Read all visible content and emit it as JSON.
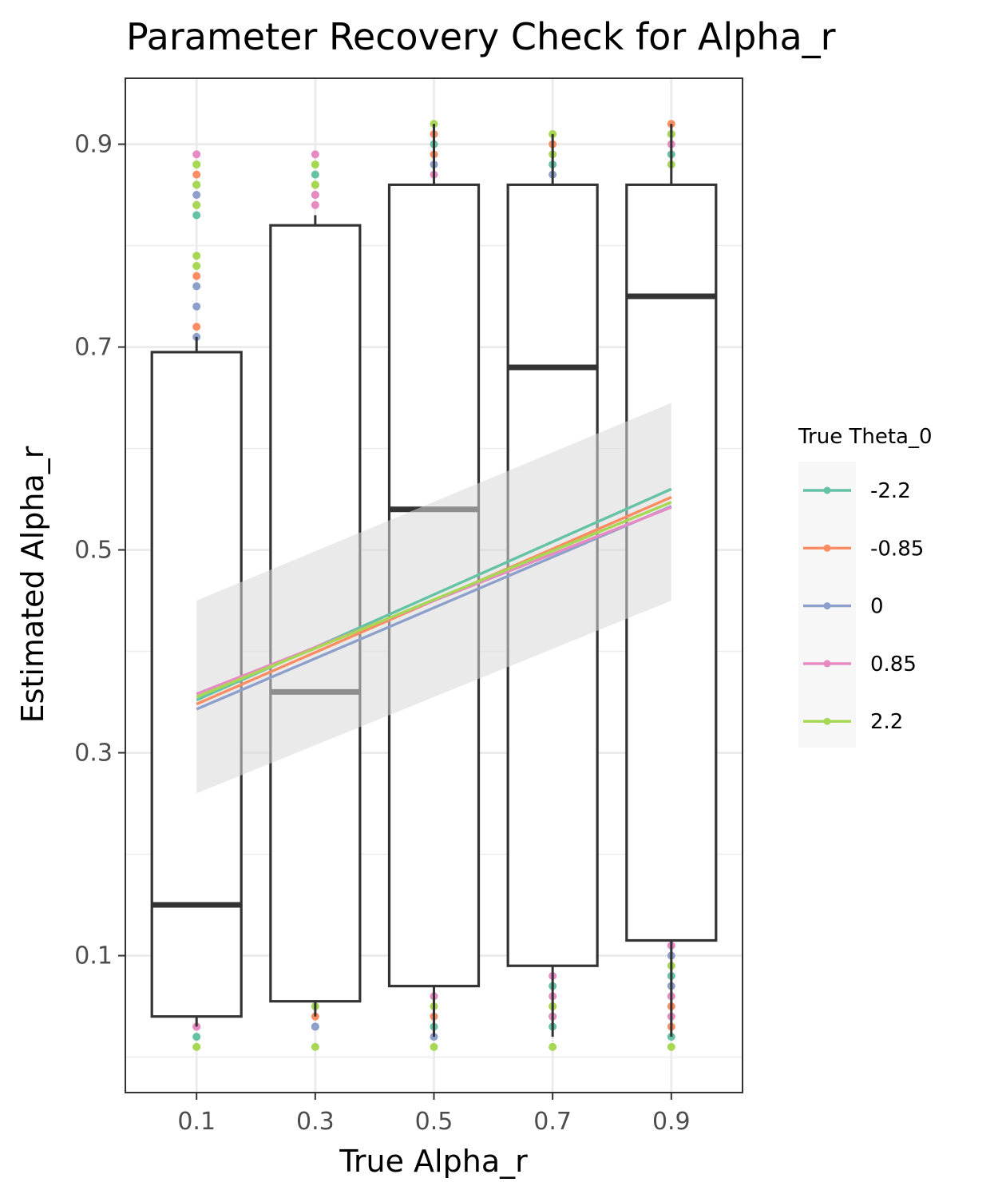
{
  "chart_data": {
    "type": "box",
    "title": "Parameter Recovery Check for Alpha_r",
    "xlabel": "True Alpha_r",
    "ylabel": "Estimated Alpha_r",
    "categories": [
      "0.1",
      "0.3",
      "0.5",
      "0.7",
      "0.9"
    ],
    "x_values": [
      0.1,
      0.3,
      0.5,
      0.7,
      0.9
    ],
    "xlim": [
      -0.02,
      1.02
    ],
    "ylim": [
      -0.035,
      0.965
    ],
    "y_ticks": [
      0.1,
      0.3,
      0.5,
      0.7,
      0.9
    ],
    "y_tick_labels": [
      "0.1",
      "0.3",
      "0.5",
      "0.7",
      "0.9"
    ],
    "grid": true,
    "legend_title": "True Theta_0",
    "legend_position": "right",
    "boxes": [
      {
        "x": 0.1,
        "q1": 0.04,
        "median": 0.15,
        "q3": 0.695,
        "whisker_low": 0.03,
        "whisker_high": 0.71
      },
      {
        "x": 0.3,
        "q1": 0.055,
        "median": 0.36,
        "q3": 0.82,
        "whisker_low": 0.04,
        "whisker_high": 0.83
      },
      {
        "x": 0.5,
        "q1": 0.07,
        "median": 0.54,
        "q3": 0.86,
        "whisker_low": 0.02,
        "whisker_high": 0.92
      },
      {
        "x": 0.7,
        "q1": 0.09,
        "median": 0.68,
        "q3": 0.86,
        "whisker_low": 0.02,
        "whisker_high": 0.91
      },
      {
        "x": 0.9,
        "q1": 0.115,
        "median": 0.75,
        "q3": 0.86,
        "whisker_low": 0.02,
        "whisker_high": 0.92
      }
    ],
    "series": [
      {
        "name": "-2.2",
        "color": "#66c2a5",
        "line": [
          [
            0.1,
            0.352
          ],
          [
            0.9,
            0.56
          ]
        ],
        "points": [
          [
            0.1,
            0.88
          ],
          [
            0.1,
            0.86
          ],
          [
            0.1,
            0.83
          ],
          [
            0.1,
            0.02
          ],
          [
            0.3,
            0.87
          ],
          [
            0.3,
            0.03
          ],
          [
            0.5,
            0.9
          ],
          [
            0.5,
            0.03
          ],
          [
            0.7,
            0.88
          ],
          [
            0.7,
            0.07
          ],
          [
            0.7,
            0.03
          ],
          [
            0.9,
            0.89
          ],
          [
            0.9,
            0.08
          ],
          [
            0.9,
            0.02
          ]
        ]
      },
      {
        "name": "-0.85",
        "color": "#fc8d62",
        "line": [
          [
            0.1,
            0.348
          ],
          [
            0.9,
            0.552
          ]
        ],
        "points": [
          [
            0.1,
            0.87
          ],
          [
            0.1,
            0.77
          ],
          [
            0.1,
            0.72
          ],
          [
            0.1,
            0.03
          ],
          [
            0.3,
            0.86
          ],
          [
            0.3,
            0.04
          ],
          [
            0.5,
            0.91
          ],
          [
            0.5,
            0.89
          ],
          [
            0.5,
            0.04
          ],
          [
            0.7,
            0.9
          ],
          [
            0.7,
            0.05
          ],
          [
            0.9,
            0.92
          ],
          [
            0.9,
            0.05
          ],
          [
            0.9,
            0.03
          ]
        ]
      },
      {
        "name": "0",
        "color": "#8da0cb",
        "line": [
          [
            0.1,
            0.343
          ],
          [
            0.9,
            0.543
          ]
        ],
        "points": [
          [
            0.1,
            0.85
          ],
          [
            0.1,
            0.76
          ],
          [
            0.1,
            0.74
          ],
          [
            0.1,
            0.71
          ],
          [
            0.3,
            0.85
          ],
          [
            0.3,
            0.03
          ],
          [
            0.5,
            0.88
          ],
          [
            0.5,
            0.02
          ],
          [
            0.7,
            0.87
          ],
          [
            0.7,
            0.04
          ],
          [
            0.9,
            0.91
          ],
          [
            0.9,
            0.1
          ],
          [
            0.9,
            0.07
          ]
        ]
      },
      {
        "name": "0.85",
        "color": "#e78ac3",
        "line": [
          [
            0.1,
            0.358
          ],
          [
            0.9,
            0.542
          ]
        ],
        "points": [
          [
            0.1,
            0.89
          ],
          [
            0.1,
            0.84
          ],
          [
            0.1,
            0.03
          ],
          [
            0.3,
            0.89
          ],
          [
            0.3,
            0.85
          ],
          [
            0.3,
            0.84
          ],
          [
            0.5,
            0.87
          ],
          [
            0.5,
            0.06
          ],
          [
            0.7,
            0.08
          ],
          [
            0.7,
            0.06
          ],
          [
            0.7,
            0.04
          ],
          [
            0.9,
            0.9
          ],
          [
            0.9,
            0.11
          ],
          [
            0.9,
            0.06
          ],
          [
            0.9,
            0.04
          ]
        ]
      },
      {
        "name": "2.2",
        "color": "#a6d854",
        "line": [
          [
            0.1,
            0.355
          ],
          [
            0.9,
            0.547
          ]
        ],
        "points": [
          [
            0.1,
            0.88
          ],
          [
            0.1,
            0.86
          ],
          [
            0.1,
            0.84
          ],
          [
            0.1,
            0.79
          ],
          [
            0.1,
            0.78
          ],
          [
            0.1,
            0.01
          ],
          [
            0.3,
            0.88
          ],
          [
            0.3,
            0.86
          ],
          [
            0.3,
            0.05
          ],
          [
            0.3,
            0.01
          ],
          [
            0.5,
            0.92
          ],
          [
            0.5,
            0.05
          ],
          [
            0.5,
            0.01
          ],
          [
            0.7,
            0.91
          ],
          [
            0.7,
            0.89
          ],
          [
            0.7,
            0.05
          ],
          [
            0.7,
            0.01
          ],
          [
            0.9,
            0.91
          ],
          [
            0.9,
            0.88
          ],
          [
            0.9,
            0.09
          ],
          [
            0.9,
            0.01
          ]
        ]
      }
    ],
    "ribbon": {
      "color": "#d9d9d9",
      "x": [
        0.1,
        0.9
      ],
      "lower": [
        0.26,
        0.45
      ],
      "upper": [
        0.45,
        0.645
      ]
    }
  }
}
